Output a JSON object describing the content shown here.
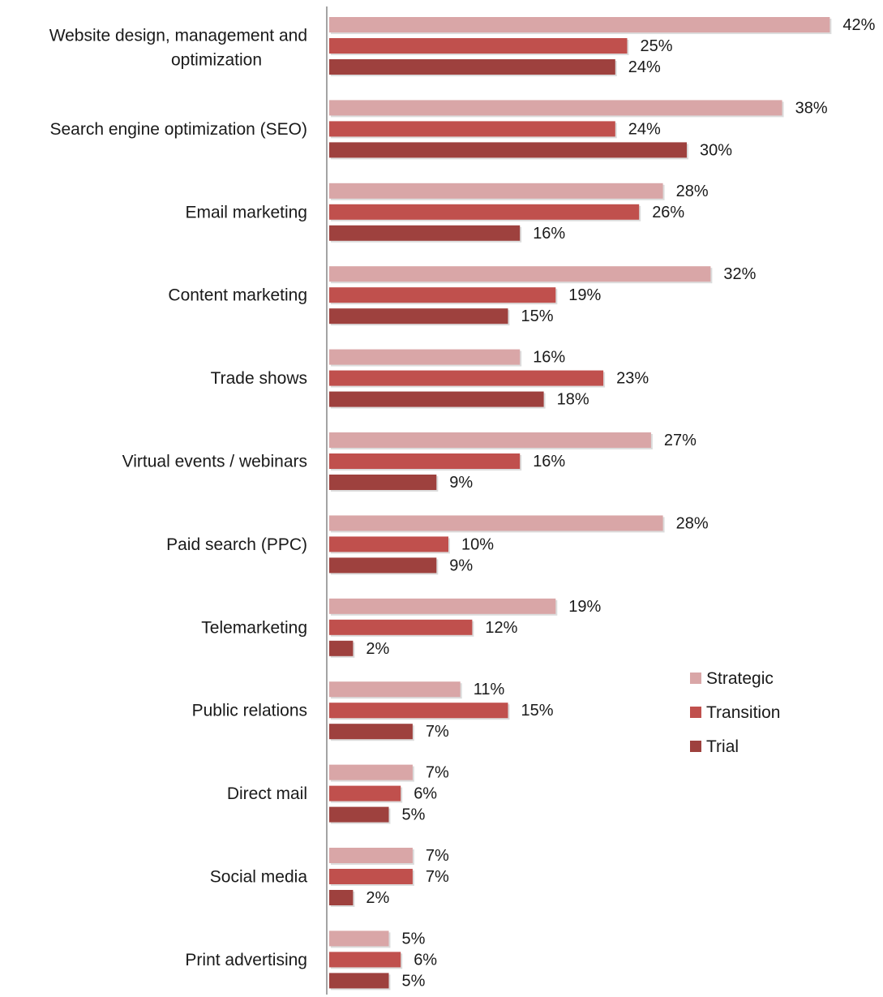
{
  "chart_data": {
    "type": "bar",
    "orientation": "horizontal",
    "categories": [
      "Website design, management and optimization",
      "Search engine optimization (SEO)",
      "Email marketing",
      "Content marketing",
      "Trade shows",
      "Virtual events / webinars",
      "Paid search (PPC)",
      "Telemarketing",
      "Public relations",
      "Direct mail",
      "Social media",
      "Print advertising"
    ],
    "series": [
      {
        "name": "Strategic",
        "color": "#d9a6a7",
        "values": [
          42,
          38,
          28,
          32,
          16,
          27,
          28,
          19,
          11,
          7,
          7,
          5
        ]
      },
      {
        "name": "Transition",
        "color": "#c0504d",
        "values": [
          25,
          24,
          26,
          19,
          23,
          16,
          10,
          12,
          15,
          6,
          7,
          6
        ]
      },
      {
        "name": "Trial",
        "color": "#9e413e",
        "values": [
          24,
          30,
          16,
          15,
          18,
          9,
          9,
          2,
          7,
          5,
          2,
          5
        ]
      }
    ],
    "value_suffix": "%",
    "xlim": [
      0,
      42
    ],
    "grid": false,
    "legend": "right",
    "title": "",
    "xlabel": "",
    "ylabel": ""
  }
}
